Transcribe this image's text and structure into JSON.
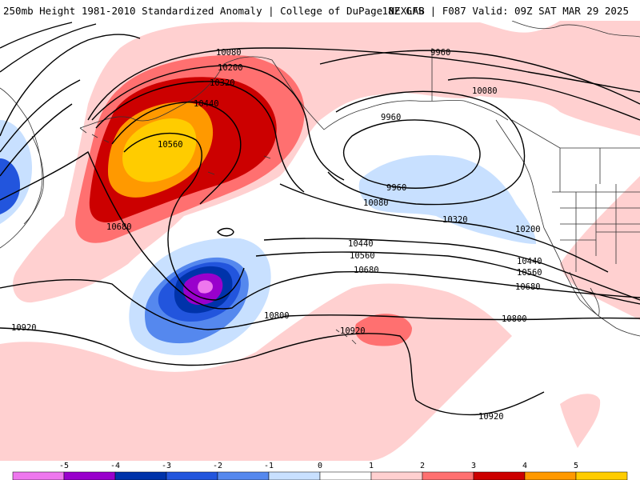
{
  "header": {
    "title_left": "250mb Height 1981-2010 Standardized Anomaly | College of DuPage NEXLAB",
    "title_right": "18Z GFS | F087 Valid: 09Z SAT MAR 29 2025"
  },
  "contour_labels": [
    "10080",
    "10200",
    "10320",
    "10440",
    "10560",
    "10680",
    "10920",
    "9960",
    "10080",
    "9960",
    "9960",
    "10080",
    "10320",
    "10200",
    "10440",
    "10560",
    "10680",
    "10800",
    "10800",
    "10920",
    "10920"
  ],
  "colorbar": {
    "ticks": [
      "-5",
      "-4",
      "-3",
      "-2",
      "-1",
      "0",
      "1",
      "2",
      "3",
      "4",
      "5"
    ],
    "colors": [
      "#ee77ee",
      "#9900cc",
      "#0033aa",
      "#2255dd",
      "#5588ee",
      "#c8e0ff",
      "#ffffff",
      "#ffd0d0",
      "#ff7070",
      "#cc0000",
      "#ff9900",
      "#ffcc00"
    ]
  },
  "anomaly_colors": {
    "neg1": "#c8e0ff",
    "neg2": "#5588ee",
    "neg3": "#2255dd",
    "neg4": "#0033aa",
    "neg5": "#9900cc",
    "neg6": "#ee77ee",
    "pos1": "#ffd0d0",
    "pos2": "#ff7070",
    "pos3": "#cc0000",
    "pos4": "#ff9900",
    "pos5": "#ffcc00"
  }
}
